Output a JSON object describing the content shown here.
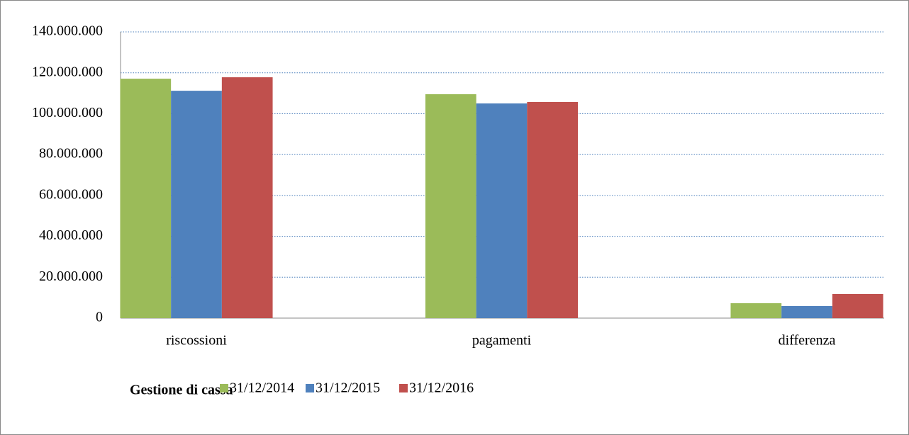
{
  "chart_data": {
    "type": "bar",
    "xlabel": "Gestione di cassa",
    "categories": [
      "riscossioni",
      "pagamenti",
      "differenza"
    ],
    "series": [
      {
        "name": "31/12/2014",
        "color": "#9bbb59",
        "values": [
          117100000,
          109500000,
          7300000
        ]
      },
      {
        "name": "31/12/2015",
        "color": "#4f81bd",
        "values": [
          111200000,
          105000000,
          5900000
        ]
      },
      {
        "name": "31/12/2016",
        "color": "#c0504d",
        "values": [
          117800000,
          105700000,
          11800000
        ]
      }
    ],
    "ylim": [
      0,
      140000000
    ],
    "yticks": [
      0,
      {
        "value": 20000000,
        "label": "20.000.000"
      },
      {
        "value": 40000000,
        "label": "40.000.000"
      },
      {
        "value": 60000000,
        "label": "60.000.000"
      },
      {
        "value": 80000000,
        "label": "80.000.000"
      },
      {
        "value": 100000000,
        "label": "100.000.000"
      },
      {
        "value": 120000000,
        "label": "120.000.000"
      },
      {
        "value": 140000000,
        "label": "140.000.000"
      }
    ],
    "grid": true,
    "legend": "bottom"
  }
}
